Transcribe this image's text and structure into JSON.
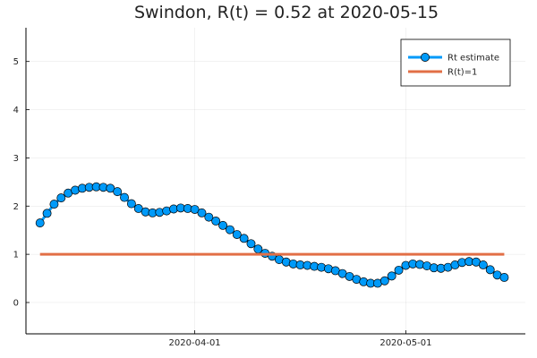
{
  "chart_data": {
    "type": "line",
    "title": "Swindon, R(t) = 0.52 at 2020-05-15",
    "xlabel": "",
    "ylabel": "",
    "x_axis_type": "date",
    "x_ticks": [
      {
        "date": "2020-04-01",
        "label": "2020-04-01"
      },
      {
        "date": "2020-05-01",
        "label": "2020-05-01"
      }
    ],
    "y_ticks": [
      0,
      1,
      2,
      3,
      4,
      5
    ],
    "xlim": [
      "2020-03-08",
      "2020-05-18"
    ],
    "ylim": [
      -0.65,
      5.7
    ],
    "grid": true,
    "legend_position": "top-right",
    "series": [
      {
        "name": "Rt estimate",
        "color": "#009af9",
        "marker": "circle",
        "x": [
          "2020-03-10",
          "2020-03-11",
          "2020-03-12",
          "2020-03-13",
          "2020-03-14",
          "2020-03-15",
          "2020-03-16",
          "2020-03-17",
          "2020-03-18",
          "2020-03-19",
          "2020-03-20",
          "2020-03-21",
          "2020-03-22",
          "2020-03-23",
          "2020-03-24",
          "2020-03-25",
          "2020-03-26",
          "2020-03-27",
          "2020-03-28",
          "2020-03-29",
          "2020-03-30",
          "2020-03-31",
          "2020-04-01",
          "2020-04-02",
          "2020-04-03",
          "2020-04-04",
          "2020-04-05",
          "2020-04-06",
          "2020-04-07",
          "2020-04-08",
          "2020-04-09",
          "2020-04-10",
          "2020-04-11",
          "2020-04-12",
          "2020-04-13",
          "2020-04-14",
          "2020-04-15",
          "2020-04-16",
          "2020-04-17",
          "2020-04-18",
          "2020-04-19",
          "2020-04-20",
          "2020-04-21",
          "2020-04-22",
          "2020-04-23",
          "2020-04-24",
          "2020-04-25",
          "2020-04-26",
          "2020-04-27",
          "2020-04-28",
          "2020-04-29",
          "2020-04-30",
          "2020-05-01",
          "2020-05-02",
          "2020-05-03",
          "2020-05-04",
          "2020-05-05",
          "2020-05-06",
          "2020-05-07",
          "2020-05-08",
          "2020-05-09",
          "2020-05-10",
          "2020-05-11",
          "2020-05-12",
          "2020-05-13",
          "2020-05-14",
          "2020-05-15"
        ],
        "values": [
          1.65,
          1.85,
          2.04,
          2.17,
          2.27,
          2.33,
          2.37,
          2.39,
          2.4,
          2.39,
          2.37,
          2.3,
          2.18,
          2.05,
          1.95,
          1.88,
          1.86,
          1.87,
          1.9,
          1.94,
          1.96,
          1.95,
          1.93,
          1.86,
          1.77,
          1.69,
          1.6,
          1.51,
          1.41,
          1.33,
          1.22,
          1.11,
          1.02,
          0.96,
          0.89,
          0.84,
          0.8,
          0.78,
          0.77,
          0.75,
          0.73,
          0.7,
          0.66,
          0.6,
          0.54,
          0.48,
          0.43,
          0.4,
          0.4,
          0.45,
          0.55,
          0.67,
          0.77,
          0.8,
          0.79,
          0.76,
          0.72,
          0.71,
          0.73,
          0.78,
          0.83,
          0.85,
          0.84,
          0.78,
          0.68,
          0.57,
          0.52
        ]
      },
      {
        "name": "R(t)=1",
        "color": "#e26f46",
        "marker": "none",
        "x": [
          "2020-03-10",
          "2020-05-15"
        ],
        "values": [
          1,
          1
        ]
      }
    ]
  }
}
